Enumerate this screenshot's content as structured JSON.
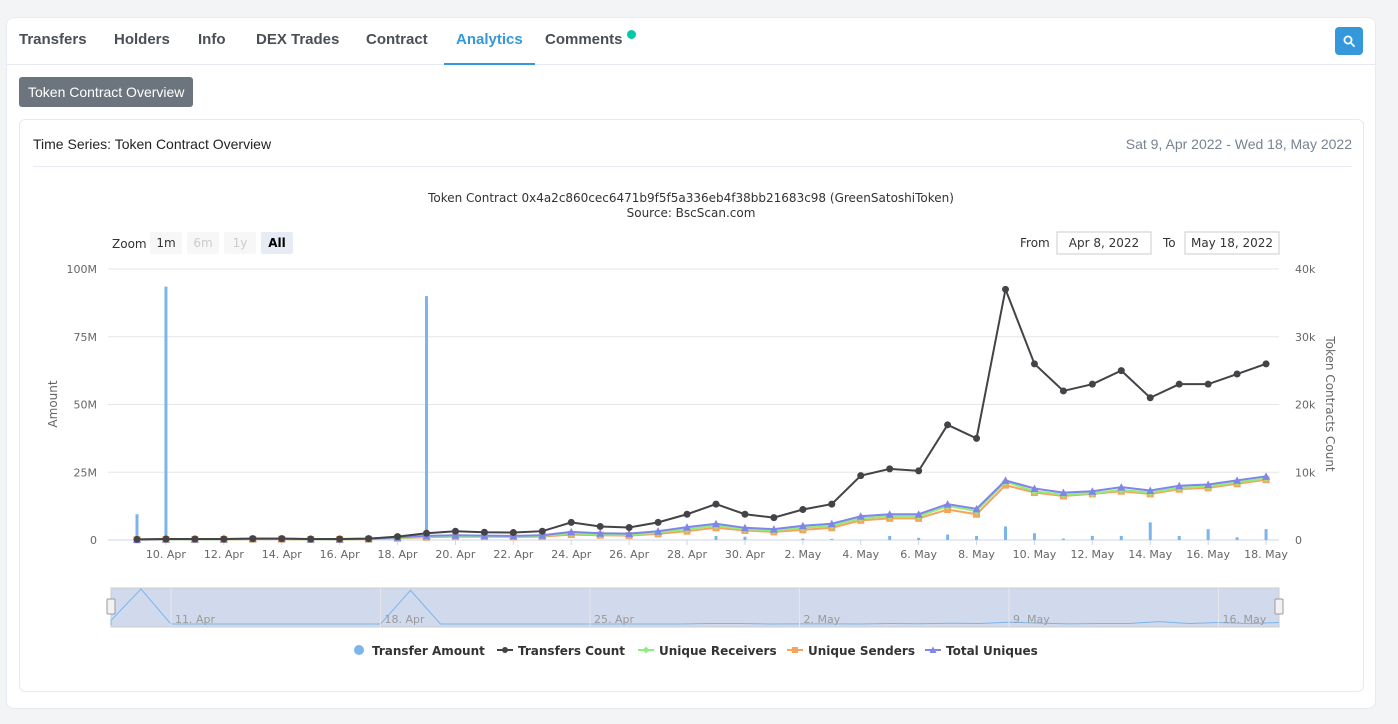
{
  "tabs": [
    {
      "label": "Transfers",
      "active": false
    },
    {
      "label": "Holders",
      "active": false
    },
    {
      "label": "Info",
      "active": false
    },
    {
      "label": "DEX Trades",
      "active": false
    },
    {
      "label": "Contract",
      "active": false
    },
    {
      "label": "Analytics",
      "active": true
    },
    {
      "label": "Comments",
      "active": false
    }
  ],
  "search_icon": "search-icon",
  "overview_button": "Token Contract Overview",
  "panel": {
    "title": "Time Series: Token Contract Overview",
    "range": "Sat 9, Apr 2022 - Wed 18, May 2022"
  },
  "controls": {
    "zoom_label": "Zoom",
    "zoom_buttons": [
      "1m",
      "6m",
      "1y",
      "All"
    ],
    "zoom_selected": "All",
    "from_label": "From",
    "from_value": "Apr 8, 2022",
    "to_label": "To",
    "to_value": "May 18, 2022"
  },
  "navigator": {
    "labels": [
      "11. Apr",
      "18. Apr",
      "25. Apr",
      "2. May",
      "9. May",
      "16. May"
    ]
  },
  "colors": {
    "tab_active": "#3498db",
    "comments_dot": "#00c9a7",
    "transfer_amount": "#7cb5ec",
    "transfers_count": "#434348",
    "unique_receivers": "#90ed7d",
    "unique_senders": "#f7a35c",
    "total_uniques": "#8085e9"
  },
  "chart_data": {
    "type": "line",
    "title": "Token Contract 0x4a2c860cec6471b9f5f5a336eb4f38bb21683c98 (GreenSatoshiToken)",
    "subtitle": "Source: BscScan.com",
    "x": [
      "2022-04-09",
      "2022-04-10",
      "2022-04-11",
      "2022-04-12",
      "2022-04-13",
      "2022-04-14",
      "2022-04-15",
      "2022-04-16",
      "2022-04-17",
      "2022-04-18",
      "2022-04-19",
      "2022-04-20",
      "2022-04-21",
      "2022-04-22",
      "2022-04-23",
      "2022-04-24",
      "2022-04-25",
      "2022-04-26",
      "2022-04-27",
      "2022-04-28",
      "2022-04-29",
      "2022-04-30",
      "2022-05-01",
      "2022-05-02",
      "2022-05-03",
      "2022-05-04",
      "2022-05-05",
      "2022-05-06",
      "2022-05-07",
      "2022-05-08",
      "2022-05-09",
      "2022-05-10",
      "2022-05-11",
      "2022-05-12",
      "2022-05-13",
      "2022-05-14",
      "2022-05-15",
      "2022-05-16",
      "2022-05-17",
      "2022-05-18"
    ],
    "x_tick_labels": [
      "10. Apr",
      "12. Apr",
      "14. Apr",
      "16. Apr",
      "18. Apr",
      "20. Apr",
      "22. Apr",
      "24. Apr",
      "26. Apr",
      "28. Apr",
      "30. Apr",
      "2. May",
      "4. May",
      "6. May",
      "8. May",
      "10. May",
      "12. May",
      "14. May",
      "16. May",
      "18. May"
    ],
    "y_left": {
      "label": "Amount",
      "range": [
        0,
        100000000
      ],
      "ticks": [
        "0",
        "25M",
        "50M",
        "75M",
        "100M"
      ]
    },
    "y_right": {
      "label": "Token Contracts Count",
      "range": [
        0,
        40000
      ],
      "ticks": [
        "0",
        "10k",
        "20k",
        "30k",
        "40k"
      ]
    },
    "series": [
      {
        "name": "Transfer Amount",
        "type": "bar",
        "axis": "left",
        "values": [
          9500000,
          93500000,
          0,
          0,
          0,
          0,
          0,
          0,
          0,
          0,
          90000000,
          0,
          0,
          0,
          0,
          0,
          0,
          0,
          0,
          0,
          1500000,
          1200000,
          0,
          500000,
          400000,
          0,
          1500000,
          800000,
          2000000,
          1500000,
          5000000,
          2500000,
          500000,
          1500000,
          1500000,
          6500000,
          1500000,
          4000000,
          1000000,
          4000000
        ]
      },
      {
        "name": "Transfers Count",
        "type": "line",
        "axis": "right",
        "values": [
          100,
          150,
          150,
          150,
          200,
          200,
          150,
          150,
          200,
          500,
          1000,
          1300,
          1150,
          1100,
          1300,
          2600,
          2000,
          1850,
          2600,
          3800,
          5300,
          3800,
          3300,
          4500,
          5300,
          9500,
          10500,
          10200,
          17000,
          15000,
          37000,
          26000,
          22000,
          23000,
          25000,
          21000,
          23000,
          23000,
          24500,
          26000
        ]
      },
      {
        "name": "Unique Receivers",
        "type": "line",
        "axis": "right",
        "values": [
          50,
          100,
          100,
          100,
          150,
          150,
          100,
          100,
          150,
          300,
          500,
          600,
          550,
          500,
          600,
          1000,
          800,
          750,
          1100,
          1600,
          2100,
          1600,
          1400,
          1800,
          2100,
          3200,
          3500,
          3500,
          5000,
          4300,
          8600,
          7200,
          6700,
          6900,
          7400,
          7000,
          7700,
          7900,
          8500,
          9100
        ]
      },
      {
        "name": "Unique Senders",
        "type": "line",
        "axis": "right",
        "values": [
          40,
          80,
          80,
          80,
          120,
          120,
          80,
          80,
          120,
          250,
          400,
          500,
          480,
          450,
          500,
          800,
          700,
          650,
          900,
          1300,
          1800,
          1400,
          1200,
          1500,
          1800,
          2900,
          3200,
          3200,
          4500,
          3800,
          8100,
          7000,
          6500,
          6800,
          7200,
          6800,
          7500,
          7700,
          8300,
          8900
        ]
      },
      {
        "name": "Total Uniques",
        "type": "line",
        "axis": "right",
        "values": [
          70,
          130,
          130,
          130,
          200,
          200,
          130,
          130,
          200,
          400,
          600,
          700,
          650,
          600,
          700,
          1200,
          1000,
          950,
          1300,
          1900,
          2400,
          1800,
          1600,
          2100,
          2400,
          3500,
          3800,
          3800,
          5300,
          4600,
          8800,
          7600,
          7000,
          7200,
          7800,
          7300,
          8000,
          8200,
          8800,
          9400
        ]
      }
    ],
    "legend": {
      "position": "bottom-center"
    },
    "grid": true
  }
}
